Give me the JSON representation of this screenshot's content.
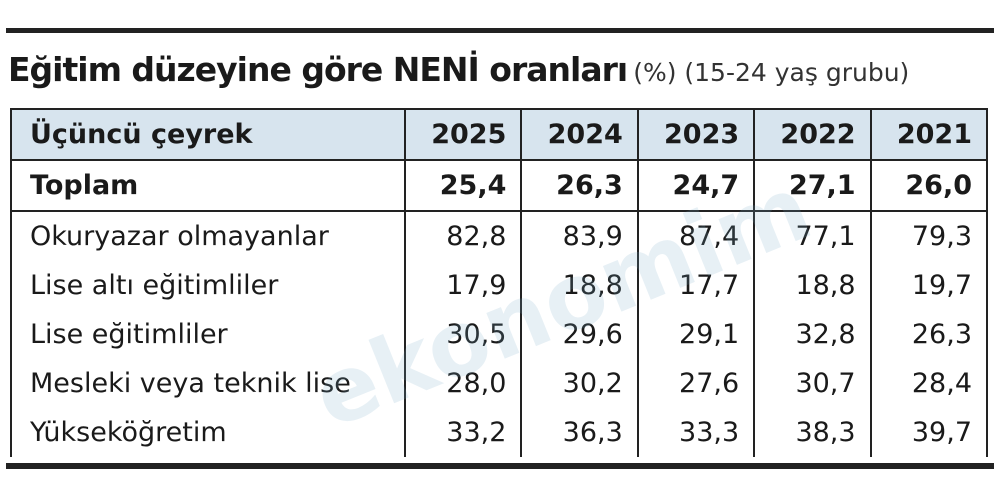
{
  "header": {
    "title": "Eğitim düzeyine göre NENİ oranları",
    "subtitle": "(%) (15-24 yaş grubu)"
  },
  "watermark": "ekonomim",
  "table": {
    "columns": [
      "Üçüncü çeyrek",
      "2025",
      "2024",
      "2023",
      "2022",
      "2021"
    ],
    "rows": [
      [
        "Toplam",
        "25,4",
        "26,3",
        "24,7",
        "27,1",
        "26,0"
      ],
      [
        "Okuryazar olmayanlar",
        "82,8",
        "83,9",
        "87,4",
        "77,1",
        "79,3"
      ],
      [
        "Lise altı eğitimliler",
        "17,9",
        "18,8",
        "17,7",
        "18,8",
        "19,7"
      ],
      [
        "Lise eğitimliler",
        "30,5",
        "29,6",
        "29,1",
        "32,8",
        "26,3"
      ],
      [
        "Mesleki veya teknik lise",
        "28,0",
        "30,2",
        "27,6",
        "30,7",
        "28,4"
      ],
      [
        "Yükseköğretim",
        "33,2",
        "36,3",
        "33,3",
        "38,3",
        "39,7"
      ]
    ]
  }
}
